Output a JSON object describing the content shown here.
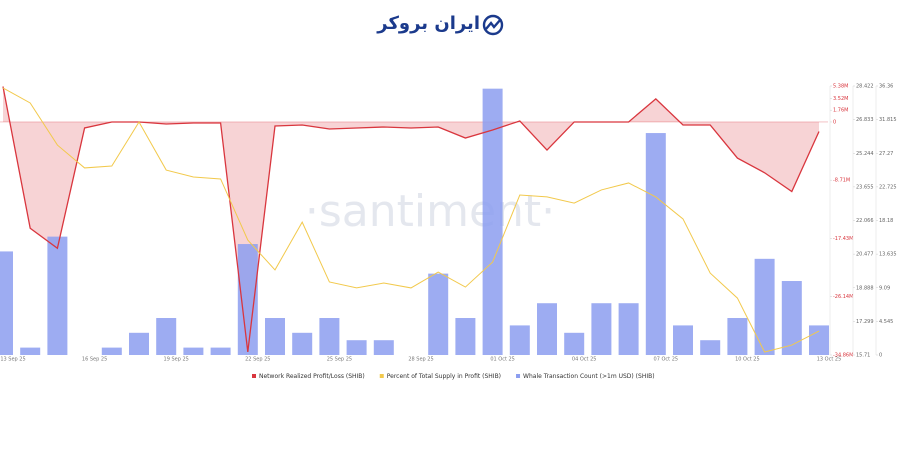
{
  "header": {
    "logo_text": "ایران بروکر"
  },
  "chart_data": {
    "type": "combo",
    "watermark": "·santiment·",
    "categories": [
      "13 Sep 25",
      null,
      null,
      "16 Sep 25",
      null,
      null,
      "19 Sep 25",
      null,
      null,
      "22 Sep 25",
      null,
      null,
      "25 Sep 25",
      null,
      null,
      "28 Sep 25",
      null,
      null,
      "01 Oct 25",
      null,
      null,
      "04 Oct 25",
      null,
      null,
      "07 Oct 25",
      null,
      null,
      "10 Oct 25",
      null,
      null,
      "13 Oct 25"
    ],
    "ylim": [
      -34.86,
      5.38
    ],
    "yticks": [
      {
        "value": -34.86,
        "label": "-34.86M"
      },
      {
        "value": -26.14,
        "label": "-26.14M"
      },
      {
        "value": -17.43,
        "label": "-17.43M"
      },
      {
        "value": -8.71,
        "label": "-8.71M"
      },
      0,
      {
        "value": 1.76,
        "label": "1.76M"
      },
      {
        "value": 3.52,
        "label": "3.52M"
      },
      {
        "value": 5.38,
        "label": "5.38M"
      }
    ],
    "y2lim": [
      15.71,
      28.422
    ],
    "y2ticks": [
      15.71,
      17.299,
      18.888,
      20.477,
      22.066,
      23.655,
      25.244,
      26.833,
      28.422
    ],
    "y3lim": [
      0,
      36.36
    ],
    "y3ticks": [
      0,
      4.545,
      9.09,
      13.635,
      18.18,
      22.725,
      27.27,
      31.815,
      36.36
    ],
    "series": [
      {
        "name": "Network Realized Profit/Loss (SHIB)",
        "color": "#d9363e",
        "kind": "area-line",
        "axis": "y",
        "values": [
          5.3,
          -15.9,
          -18.9,
          -0.9,
          0,
          0,
          -0.3,
          -0.15,
          -0.15,
          -34.4,
          -0.6,
          -0.45,
          -1.05,
          -0.9,
          -0.75,
          -0.9,
          -0.75,
          -2.4,
          -1.2,
          0.15,
          -4.2,
          0,
          0,
          0,
          3.45,
          -0.45,
          -0.45,
          -5.4,
          -7.6,
          -10.4,
          -1.43
        ]
      },
      {
        "name": "Percent of Total Supply in Profit (SHIB)",
        "color": "#f2c94c",
        "kind": "line",
        "axis": "y2",
        "values": [
          28.33,
          27.62,
          25.63,
          24.55,
          24.64,
          26.72,
          24.45,
          24.12,
          24.03,
          21.14,
          19.73,
          21.99,
          19.16,
          18.88,
          19.11,
          18.88,
          19.63,
          18.92,
          20.1,
          23.27,
          23.18,
          22.89,
          23.51,
          23.84,
          23.18,
          22.14,
          19.58,
          18.4,
          15.85,
          16.18,
          16.84
        ]
      },
      {
        "name": "Whale Transaction Count (>1m USD) (SHIB)",
        "color": "#8c9ef0",
        "kind": "bar",
        "axis": "y3",
        "values": [
          14,
          1,
          16,
          0,
          1,
          3,
          5,
          1,
          1,
          15,
          5,
          3,
          5,
          2,
          2,
          0,
          11,
          5,
          36,
          4,
          7,
          3,
          7,
          7,
          30,
          4,
          2,
          5,
          13,
          10,
          4
        ]
      }
    ]
  }
}
